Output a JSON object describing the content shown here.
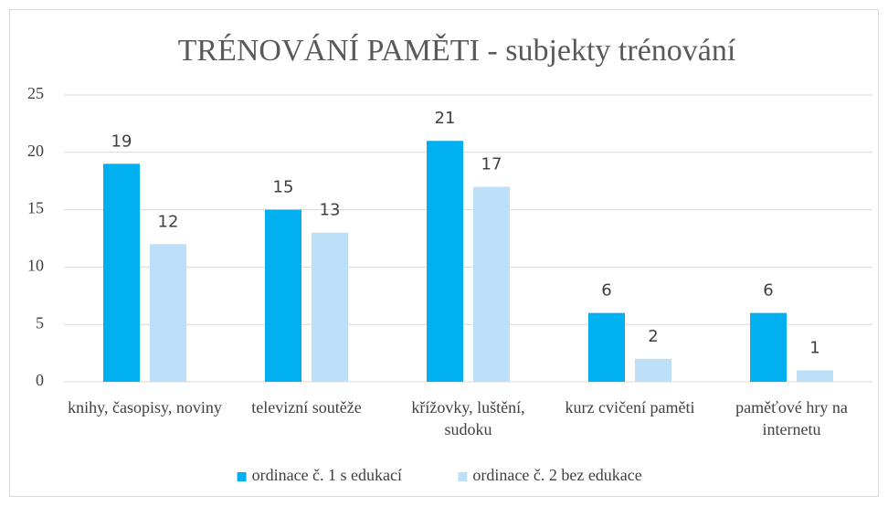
{
  "chart_data": {
    "type": "bar",
    "title": "TRÉNOVÁNÍ PAMĚTI - subjekty trénování",
    "categories": [
      "knihy, časopisy, noviny",
      "televizní soutěže",
      "křížovky, luštění, sudoku",
      "kurz cvičení paměti",
      "paměťové hry na internetu"
    ],
    "series": [
      {
        "name": "ordinace č. 1 s edukací",
        "color": "#00b0f0",
        "values": [
          19,
          15,
          21,
          6,
          6
        ]
      },
      {
        "name": "ordinace č. 2 bez edukace",
        "color": "#bddff7",
        "values": [
          12,
          13,
          17,
          2,
          1
        ]
      }
    ],
    "ylim": [
      0,
      25
    ],
    "yticks": [
      0,
      5,
      10,
      15,
      20,
      25
    ],
    "grid": true,
    "legend": "bottom"
  }
}
